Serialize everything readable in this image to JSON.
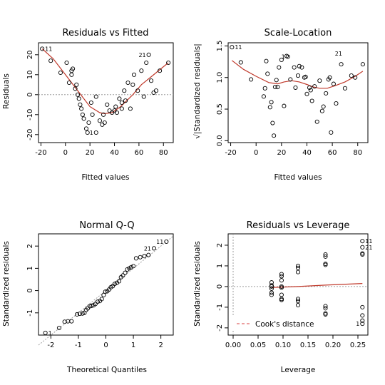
{
  "chart_data": [
    {
      "id": "rvf",
      "type": "scatter",
      "title": "Residuals vs Fitted",
      "xlabel": "Fitted values",
      "ylabel": "Residuals",
      "xlim": [
        -22,
        88
      ],
      "ylim": [
        -24,
        26
      ],
      "xticks": [
        -20,
        0,
        20,
        40,
        60,
        80
      ],
      "yticks": [
        -20,
        -10,
        0,
        10,
        20
      ],
      "refline": {
        "y": 0
      },
      "points": [
        [
          -19,
          23
        ],
        [
          -12,
          17
        ],
        [
          -4,
          11
        ],
        [
          1,
          16
        ],
        [
          3,
          6
        ],
        [
          5,
          10
        ],
        [
          5,
          12
        ],
        [
          6,
          13
        ],
        [
          8,
          3
        ],
        [
          9,
          5
        ],
        [
          10,
          0
        ],
        [
          11,
          -2
        ],
        [
          12,
          -5
        ],
        [
          13,
          -7
        ],
        [
          14,
          -10
        ],
        [
          15,
          -12
        ],
        [
          17,
          -17
        ],
        [
          18,
          -19
        ],
        [
          19,
          -14
        ],
        [
          21,
          -4
        ],
        [
          22,
          -10
        ],
        [
          25,
          -19
        ],
        [
          25,
          -1
        ],
        [
          28,
          -13
        ],
        [
          30,
          -15
        ],
        [
          31,
          -10
        ],
        [
          32,
          -14
        ],
        [
          34,
          -5
        ],
        [
          36,
          -8
        ],
        [
          38,
          -9
        ],
        [
          40,
          -8
        ],
        [
          41,
          -6
        ],
        [
          42,
          -9
        ],
        [
          44,
          -2
        ],
        [
          46,
          -4
        ],
        [
          46,
          -7
        ],
        [
          48,
          2
        ],
        [
          49,
          -3
        ],
        [
          51,
          6
        ],
        [
          53,
          -7
        ],
        [
          55,
          5
        ],
        [
          56,
          10
        ],
        [
          59,
          2
        ],
        [
          62,
          12
        ],
        [
          64,
          -1
        ],
        [
          66,
          16
        ],
        [
          68,
          20
        ],
        [
          70,
          7
        ],
        [
          72,
          1
        ],
        [
          74,
          2
        ],
        [
          77,
          12
        ],
        [
          84,
          16
        ]
      ],
      "smooth": [
        [
          -19,
          23
        ],
        [
          -10,
          18
        ],
        [
          0,
          10
        ],
        [
          10,
          2
        ],
        [
          20,
          -6
        ],
        [
          28,
          -9
        ],
        [
          32,
          -9.5
        ],
        [
          38,
          -9
        ],
        [
          45,
          -6
        ],
        [
          55,
          0
        ],
        [
          62,
          5
        ],
        [
          70,
          9
        ],
        [
          78,
          13
        ],
        [
          84,
          16
        ]
      ],
      "point_labels": [
        {
          "text": "11",
          "x": -19,
          "y": 23,
          "side": "right"
        },
        {
          "text": "21",
          "x": 68,
          "y": 20,
          "side": "left"
        },
        {
          "text": "1",
          "x": 25,
          "y": -19,
          "side": "left"
        }
      ]
    },
    {
      "id": "sl",
      "type": "scatter",
      "title": "Scale-Location",
      "xlabel": "Fitted values",
      "ylabel": "√|Standardized residuals|",
      "xlim": [
        -22,
        88
      ],
      "ylim": [
        -0.03,
        1.55
      ],
      "xticks": [
        -20,
        0,
        20,
        40,
        60,
        80
      ],
      "yticks": [
        0.0,
        0.5,
        1.0,
        1.5
      ],
      "ytick_labels": [
        "0.0",
        "0.5",
        "1.0",
        "1.5"
      ],
      "points": [
        [
          -19,
          1.48
        ],
        [
          -12,
          1.24
        ],
        [
          -4,
          0.97
        ],
        [
          6,
          0.7
        ],
        [
          7,
          0.83
        ],
        [
          8,
          1.26
        ],
        [
          9,
          1.06
        ],
        [
          11,
          0.53
        ],
        [
          12,
          0.61
        ],
        [
          13,
          0.28
        ],
        [
          14,
          0.08
        ],
        [
          15,
          0.85
        ],
        [
          16,
          0.96
        ],
        [
          17,
          0.85
        ],
        [
          18,
          1.16
        ],
        [
          20,
          1.28
        ],
        [
          22,
          0.55
        ],
        [
          24,
          1.34
        ],
        [
          25,
          1.33
        ],
        [
          27,
          0.97
        ],
        [
          30,
          1.16
        ],
        [
          31,
          0.84
        ],
        [
          33,
          1.03
        ],
        [
          34,
          1.18
        ],
        [
          36,
          1.16
        ],
        [
          38,
          1.0
        ],
        [
          39,
          1.01
        ],
        [
          40,
          0.74
        ],
        [
          42,
          0.84
        ],
        [
          43,
          0.8
        ],
        [
          44,
          0.63
        ],
        [
          46,
          0.86
        ],
        [
          48,
          0.3
        ],
        [
          50,
          0.95
        ],
        [
          52,
          0.47
        ],
        [
          53,
          0.54
        ],
        [
          55,
          0.75
        ],
        [
          57,
          0.97
        ],
        [
          58,
          1.0
        ],
        [
          59,
          0.13
        ],
        [
          61,
          0.9
        ],
        [
          63,
          0.59
        ],
        [
          67,
          1.21
        ],
        [
          70,
          0.83
        ],
        [
          75,
          1.03
        ],
        [
          78,
          1.0
        ],
        [
          84,
          1.21
        ]
      ],
      "smooth": [
        [
          -19,
          1.27
        ],
        [
          -10,
          1.13
        ],
        [
          0,
          1.02
        ],
        [
          10,
          0.92
        ],
        [
          17,
          0.9
        ],
        [
          22,
          0.93
        ],
        [
          28,
          0.95
        ],
        [
          34,
          0.93
        ],
        [
          40,
          0.89
        ],
        [
          45,
          0.85
        ],
        [
          50,
          0.83
        ],
        [
          56,
          0.83
        ],
        [
          62,
          0.87
        ],
        [
          70,
          0.93
        ],
        [
          78,
          1.02
        ],
        [
          84,
          1.1
        ]
      ],
      "point_labels": [
        {
          "text": "11",
          "x": -19,
          "y": 1.48,
          "side": "right"
        },
        {
          "text": "21",
          "x": 70,
          "y": 1.38,
          "side": "left"
        },
        {
          "text": "1",
          "x": 25,
          "y": 1.33,
          "side": "left"
        }
      ]
    },
    {
      "id": "qq",
      "type": "scatter",
      "title": "Normal Q-Q",
      "xlabel": "Theoretical Quantiles",
      "ylabel": "Standardized residuals",
      "xlim": [
        -2.45,
        2.45
      ],
      "ylim": [
        -2.0,
        2.55
      ],
      "xticks": [
        -2,
        -1,
        0,
        1,
        2
      ],
      "yticks": [
        -1,
        0,
        1,
        2
      ],
      "refline": {
        "from": [
          -2.45,
          -2.45
        ],
        "to": [
          2.45,
          2.45
        ]
      },
      "points": [
        [
          -2.2,
          -1.9
        ],
        [
          -1.7,
          -1.68
        ],
        [
          -1.5,
          -1.4
        ],
        [
          -1.38,
          -1.38
        ],
        [
          -1.25,
          -1.38
        ],
        [
          -1.05,
          -1.07
        ],
        [
          -0.95,
          -1.04
        ],
        [
          -0.85,
          -1.03
        ],
        [
          -0.78,
          -1.0
        ],
        [
          -0.72,
          -0.87
        ],
        [
          -0.66,
          -0.8
        ],
        [
          -0.58,
          -0.7
        ],
        [
          -0.52,
          -0.68
        ],
        [
          -0.45,
          -0.66
        ],
        [
          -0.38,
          -0.6
        ],
        [
          -0.3,
          -0.5
        ],
        [
          -0.22,
          -0.47
        ],
        [
          -0.15,
          -0.38
        ],
        [
          -0.08,
          -0.2
        ],
        [
          -0.02,
          -0.05
        ],
        [
          0.05,
          -0.03
        ],
        [
          0.12,
          0.05
        ],
        [
          0.18,
          0.15
        ],
        [
          0.25,
          0.2
        ],
        [
          0.32,
          0.3
        ],
        [
          0.4,
          0.35
        ],
        [
          0.48,
          0.42
        ],
        [
          0.55,
          0.6
        ],
        [
          0.62,
          0.68
        ],
        [
          0.7,
          0.8
        ],
        [
          0.78,
          0.95
        ],
        [
          0.85,
          1.0
        ],
        [
          0.92,
          1.05
        ],
        [
          1.0,
          1.1
        ],
        [
          1.1,
          1.45
        ],
        [
          1.25,
          1.5
        ],
        [
          1.4,
          1.55
        ],
        [
          1.55,
          1.6
        ],
        [
          1.75,
          1.9
        ],
        [
          2.2,
          2.2
        ]
      ],
      "point_labels": [
        {
          "text": "11",
          "x": 2.2,
          "y": 2.2,
          "side": "left"
        },
        {
          "text": "21",
          "x": 1.75,
          "y": 1.9,
          "side": "left"
        },
        {
          "text": "1",
          "x": -2.2,
          "y": -1.9,
          "side": "right"
        }
      ]
    },
    {
      "id": "rvl",
      "type": "scatter",
      "title": "Residuals vs Leverage",
      "xlabel": "Leverage",
      "ylabel": "Standardized residuals",
      "xlim": [
        -0.01,
        0.27
      ],
      "ylim": [
        -2.35,
        2.55
      ],
      "xticks": [
        0.0,
        0.05,
        0.1,
        0.15,
        0.2,
        0.25
      ],
      "xtick_labels": [
        "0.00",
        "0.05",
        "0.10",
        "0.15",
        "0.20",
        "0.25"
      ],
      "yticks": [
        -2,
        -1,
        0,
        1,
        2
      ],
      "refline": {
        "y": 0,
        "x": 0
      },
      "points": [
        [
          0.077,
          0.2
        ],
        [
          0.077,
          0.0
        ],
        [
          0.077,
          -0.1
        ],
        [
          0.077,
          -0.3
        ],
        [
          0.077,
          -0.4
        ],
        [
          0.077,
          0.05
        ],
        [
          0.097,
          0.6
        ],
        [
          0.097,
          0.5
        ],
        [
          0.097,
          0.3
        ],
        [
          0.097,
          0.0
        ],
        [
          0.097,
          -0.05
        ],
        [
          0.097,
          -0.4
        ],
        [
          0.097,
          -0.6
        ],
        [
          0.097,
          -0.65
        ],
        [
          0.13,
          1.0
        ],
        [
          0.13,
          0.9
        ],
        [
          0.13,
          0.7
        ],
        [
          0.13,
          -0.6
        ],
        [
          0.13,
          -0.7
        ],
        [
          0.13,
          -0.9
        ],
        [
          0.185,
          1.55
        ],
        [
          0.185,
          1.45
        ],
        [
          0.185,
          1.1
        ],
        [
          0.185,
          1.05
        ],
        [
          0.185,
          -0.95
        ],
        [
          0.185,
          -1.05
        ],
        [
          0.185,
          -1.3
        ],
        [
          0.185,
          -1.35
        ],
        [
          0.259,
          2.2
        ],
        [
          0.259,
          1.9
        ],
        [
          0.259,
          1.6
        ],
        [
          0.259,
          1.55
        ],
        [
          0.259,
          -1.0
        ],
        [
          0.259,
          -1.4
        ],
        [
          0.259,
          -1.65
        ],
        [
          0.259,
          -1.8
        ]
      ],
      "smooth": [
        [
          0.077,
          -0.05
        ],
        [
          0.13,
          0.0
        ],
        [
          0.185,
          0.07
        ],
        [
          0.259,
          0.15
        ]
      ],
      "point_labels": [
        {
          "text": "11",
          "x": 0.259,
          "y": 2.2,
          "side": "right"
        },
        {
          "text": "21",
          "x": 0.259,
          "y": 1.9,
          "side": "right"
        },
        {
          "text": "1",
          "x": 0.259,
          "y": -1.8,
          "side": "left"
        }
      ],
      "legend": {
        "label": "Cook's distance",
        "position": "bottom-left",
        "color": "#e06666"
      }
    }
  ],
  "colors": {
    "smooth": "#c0392b",
    "cook": "#e06666",
    "reference": "#9e9e9e",
    "points": "#000000"
  }
}
